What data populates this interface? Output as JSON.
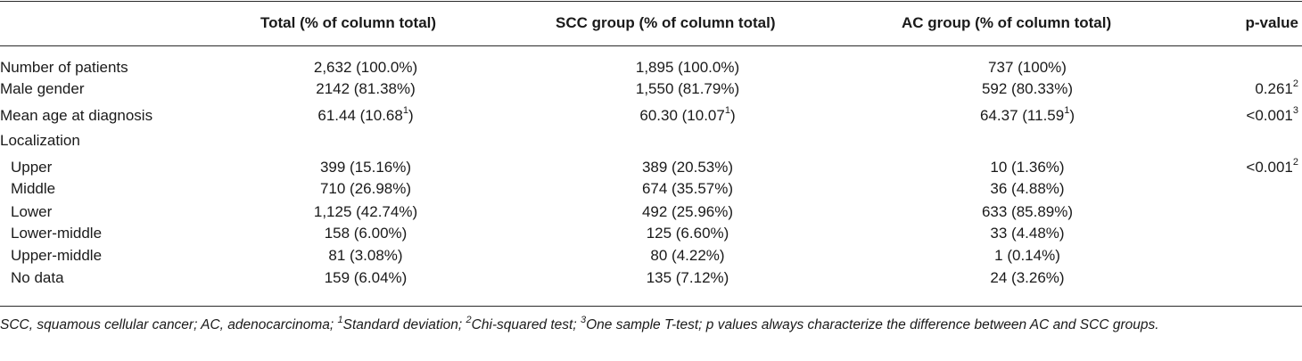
{
  "table": {
    "headers": {
      "total": "Total (% of column total)",
      "scc": "SCC group (% of column total)",
      "ac": "AC group (% of column total)",
      "pvalue": "p-value"
    },
    "rows": [
      {
        "label": "Number of patients",
        "indent": false,
        "total": "2,632 (100.0%)",
        "total_sup": "",
        "scc": "1,895 (100.0%)",
        "scc_sup": "",
        "ac": "737 (100%)",
        "ac_sup": "",
        "p": "",
        "p_sup": ""
      },
      {
        "label": "Male gender",
        "indent": false,
        "total": "2142 (81.38%)",
        "total_sup": "",
        "scc": "1,550 (81.79%)",
        "scc_sup": "",
        "ac": "592 (80.33%)",
        "ac_sup": "",
        "p": "0.261",
        "p_sup": "2"
      },
      {
        "label": "Mean age at diagnosis",
        "indent": false,
        "total": "61.44 (10.68",
        "total_sup": "1",
        "total_tail": ")",
        "scc": "60.30 (10.07",
        "scc_sup": "1",
        "scc_tail": ")",
        "ac": "64.37 (11.59",
        "ac_sup": "1",
        "ac_tail": ")",
        "p": "<0.001",
        "p_sup": "3"
      },
      {
        "label": "Localization",
        "indent": false,
        "total": "",
        "total_sup": "",
        "scc": "",
        "scc_sup": "",
        "ac": "",
        "ac_sup": "",
        "p": "",
        "p_sup": ""
      },
      {
        "label": "Upper",
        "indent": true,
        "total": "399 (15.16%)",
        "total_sup": "",
        "scc": "389 (20.53%)",
        "scc_sup": "",
        "ac": "10 (1.36%)",
        "ac_sup": "",
        "p": "<0.001",
        "p_sup": "2"
      },
      {
        "label": "Middle",
        "indent": true,
        "total": "710 (26.98%)",
        "total_sup": "",
        "scc": "674 (35.57%)",
        "scc_sup": "",
        "ac": "36 (4.88%)",
        "ac_sup": "",
        "p": "",
        "p_sup": ""
      },
      {
        "label": "Lower",
        "indent": true,
        "total": "1,125 (42.74%)",
        "total_sup": "",
        "scc": "492 (25.96%)",
        "scc_sup": "",
        "ac": "633 (85.89%)",
        "ac_sup": "",
        "p": "",
        "p_sup": ""
      },
      {
        "label": "Lower-middle",
        "indent": true,
        "total": "158 (6.00%)",
        "total_sup": "",
        "scc": "125 (6.60%)",
        "scc_sup": "",
        "ac": "33 (4.48%)",
        "ac_sup": "",
        "p": "",
        "p_sup": ""
      },
      {
        "label": "Upper-middle",
        "indent": true,
        "total": "81 (3.08%)",
        "total_sup": "",
        "scc": "80 (4.22%)",
        "scc_sup": "",
        "ac": "1 (0.14%)",
        "ac_sup": "",
        "p": "",
        "p_sup": ""
      },
      {
        "label": "No data",
        "indent": true,
        "total": "159 (6.04%)",
        "total_sup": "",
        "scc": "135 (7.12%)",
        "scc_sup": "",
        "ac": "24 (3.26%)",
        "ac_sup": "",
        "p": "",
        "p_sup": ""
      }
    ]
  },
  "footnote": {
    "part1": "SCC, squamous cellular cancer; AC, adenocarcinoma; ",
    "sup1": "1",
    "part2": "Standard deviation; ",
    "sup2": "2",
    "part3": "Chi-squared test; ",
    "sup3": "3",
    "part4": "One sample T-test; p values always characterize the difference between AC and SCC groups."
  }
}
